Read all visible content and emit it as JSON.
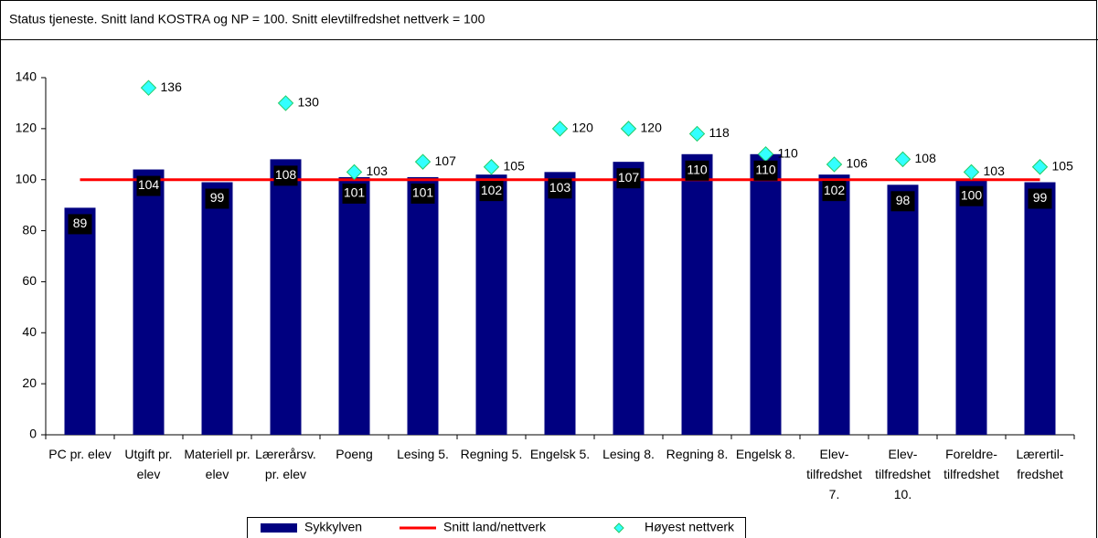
{
  "chart_data": {
    "type": "bar",
    "title": "Status tjeneste. Snitt land KOSTRA og NP = 100.  Snitt elevtilfredshet nettverk = 100",
    "categories": [
      "PC pr. elev",
      "Utgift pr. elev",
      "Materiell pr. elev",
      "Lærerårsv. pr. elev",
      "Poeng",
      "Lesing 5.",
      "Regning 5.",
      "Engelsk 5.",
      "Lesing 8.",
      "Regning 8.",
      "Engelsk 8.",
      "Elev-tilfredshet 7.",
      "Elev-tilfredshet 10.",
      "Foreldre-tilfredshet",
      "Lærertil-fredshet"
    ],
    "series": [
      {
        "name": "Sykkylven",
        "type": "bar",
        "color": "#000080",
        "values": [
          89,
          104,
          99,
          108,
          101,
          101,
          102,
          103,
          107,
          110,
          110,
          102,
          98,
          100,
          99
        ]
      },
      {
        "name": "Snitt land/nettverk",
        "type": "line",
        "color": "#ff0000",
        "values": [
          100,
          100,
          100,
          100,
          100,
          100,
          100,
          100,
          100,
          100,
          100,
          100,
          100,
          100,
          100
        ]
      },
      {
        "name": "Høyest nettverk",
        "type": "scatter",
        "color": "#33ffff",
        "values": [
          null,
          136,
          null,
          130,
          103,
          107,
          105,
          120,
          120,
          118,
          110,
          106,
          108,
          103,
          105
        ]
      }
    ],
    "ylim": [
      0,
      140
    ],
    "yticks": [
      0,
      20,
      40,
      60,
      80,
      100,
      120,
      140
    ],
    "legend": "bottom"
  }
}
